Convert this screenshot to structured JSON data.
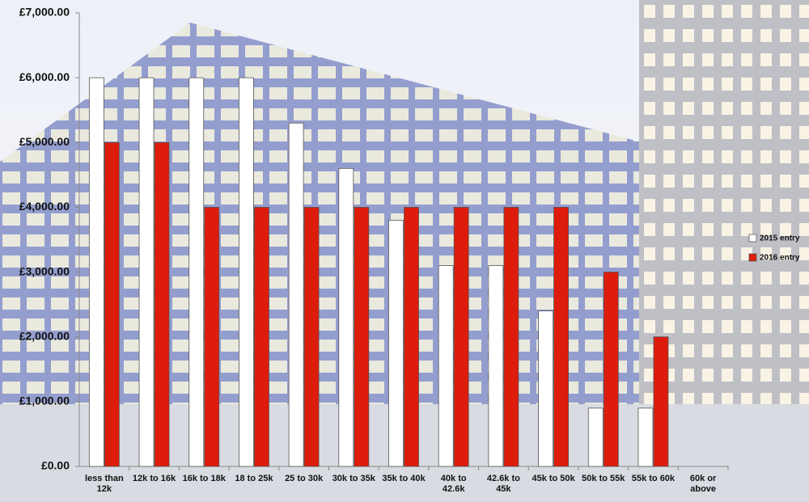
{
  "chart_data": {
    "type": "bar",
    "categories": [
      "less than\n12k",
      "12k to 16k",
      "16k to 18k",
      "18 to 25k",
      "25 to 30k",
      "30k to 35k",
      "35k to 40k",
      "40k to\n42.6k",
      "42.6k to\n45k",
      "45k to 50k",
      "50k to 55k",
      "55k to 60k",
      "60k or\nabove"
    ],
    "series": [
      {
        "name": "2015 entry",
        "color": "#ffffff",
        "values": [
          6000,
          6000,
          6000,
          6000,
          5300,
          4600,
          3800,
          3100,
          3100,
          2400,
          900,
          900,
          null
        ]
      },
      {
        "name": "2016 entry",
        "color": "#dd1c0c",
        "values": [
          5000,
          5000,
          4000,
          4000,
          4000,
          4000,
          4000,
          4000,
          4000,
          4000,
          3000,
          2000,
          null
        ]
      }
    ],
    "ylim": [
      0,
      7000
    ],
    "yticks": [
      {
        "value": 0,
        "label": "£0.00"
      },
      {
        "value": 1000,
        "label": "£1,000.00"
      },
      {
        "value": 2000,
        "label": "£2,000.00"
      },
      {
        "value": 3000,
        "label": "£3,000.00"
      },
      {
        "value": 4000,
        "label": "£4,000.00"
      },
      {
        "value": 5000,
        "label": "£5,000.00"
      },
      {
        "value": 6000,
        "label": "£6,000.00"
      },
      {
        "value": 7000,
        "label": "£7,000.00"
      }
    ],
    "legend": "right"
  }
}
